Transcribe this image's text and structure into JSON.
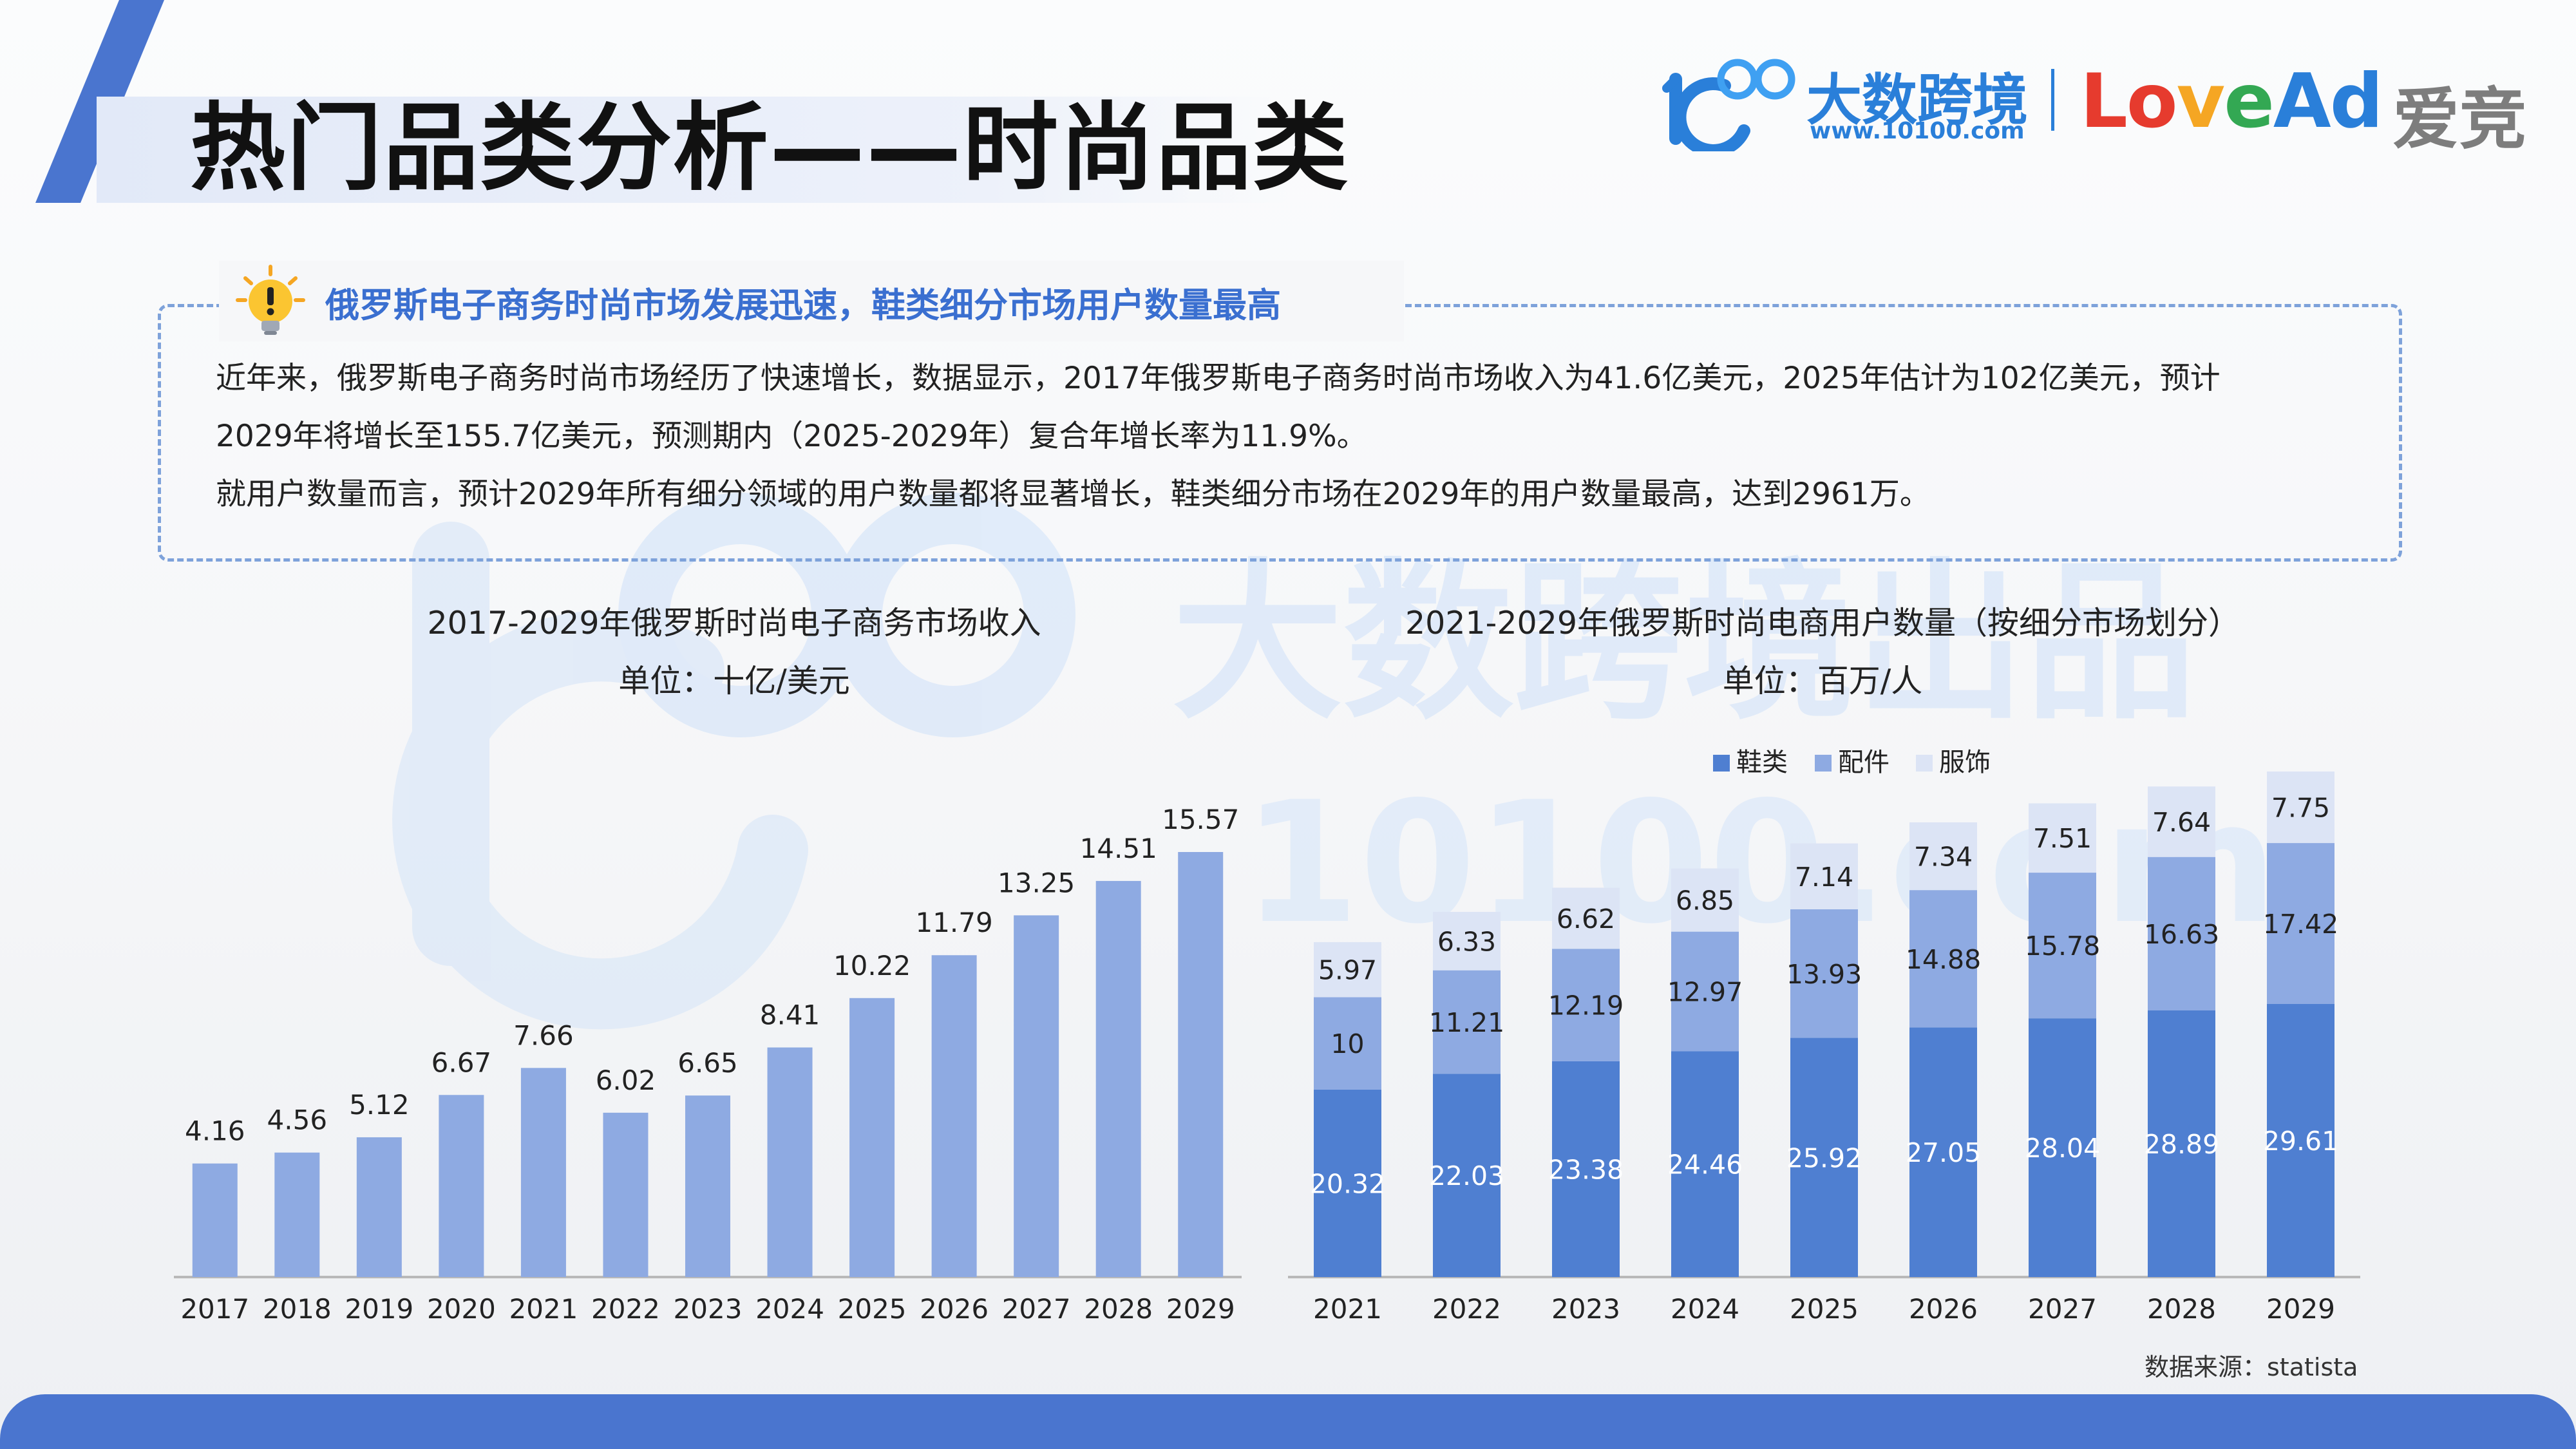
{
  "header": {
    "title": "热门品类分析——时尚品类",
    "logo": {
      "brand_cn": "大数跨境",
      "brand_url": "www.10100.com",
      "partner_latin": [
        "Lo",
        "v",
        "e",
        "Ad"
      ],
      "partner_cn": "爱竞"
    }
  },
  "watermark": {
    "mark": "100",
    "text_cn": "大数跨境出品",
    "text_url": "10100.com"
  },
  "highlight": {
    "icon": "lightbulb-icon",
    "title": "俄罗斯电子商务时尚市场发展迅速，鞋类细分市场用户数量最高",
    "paragraphs": [
      "近年来，俄罗斯电子商务时尚市场经历了快速增长，数据显示，2017年俄罗斯电子商务时尚市场收入为41.6亿美元，2025年估计为102亿美元，预计",
      "2029年将增长至155.7亿美元，预测期内（2025-2029年）复合年增长率为11.9%。",
      "就用户数量而言，预计2029年所有细分领域的用户数量都将显著增长，鞋类细分市场在2029年的用户数量最高，达到2961万。"
    ]
  },
  "chart_data": [
    {
      "type": "bar",
      "title": "2017-2029年俄罗斯时尚电子商务市场收入",
      "subtitle": "单位：十亿/美元",
      "categories": [
        "2017",
        "2018",
        "2019",
        "2020",
        "2021",
        "2022",
        "2023",
        "2024",
        "2025",
        "2026",
        "2027",
        "2028",
        "2029"
      ],
      "values": [
        4.16,
        4.56,
        5.12,
        6.67,
        7.66,
        6.02,
        6.65,
        8.41,
        10.22,
        11.79,
        13.25,
        14.51,
        15.57
      ],
      "ylim": [
        0,
        17
      ],
      "grid": false,
      "color": "#8eaae2"
    },
    {
      "type": "bar",
      "stacked": true,
      "title": "2021-2029年俄罗斯时尚电商用户数量（按细分市场划分）",
      "subtitle": "单位：百万/人",
      "categories": [
        "2021",
        "2022",
        "2023",
        "2024",
        "2025",
        "2026",
        "2027",
        "2028",
        "2029"
      ],
      "series": [
        {
          "name": "鞋类",
          "color": "#4f7fd1",
          "values": [
            20.32,
            22.03,
            23.38,
            24.46,
            25.92,
            27.05,
            28.04,
            28.89,
            29.61
          ]
        },
        {
          "name": "配件",
          "color": "#8eaae2",
          "values": [
            10,
            11.21,
            12.19,
            12.97,
            13.93,
            14.88,
            15.78,
            16.63,
            17.42
          ]
        },
        {
          "name": "服饰",
          "color": "#dce4f5",
          "values": [
            5.97,
            6.33,
            6.62,
            6.85,
            7.14,
            7.34,
            7.51,
            7.64,
            7.75
          ]
        }
      ],
      "ylim": [
        0,
        56
      ],
      "legend": "top",
      "grid": false
    }
  ],
  "footer": {
    "source": "数据来源：statista"
  }
}
